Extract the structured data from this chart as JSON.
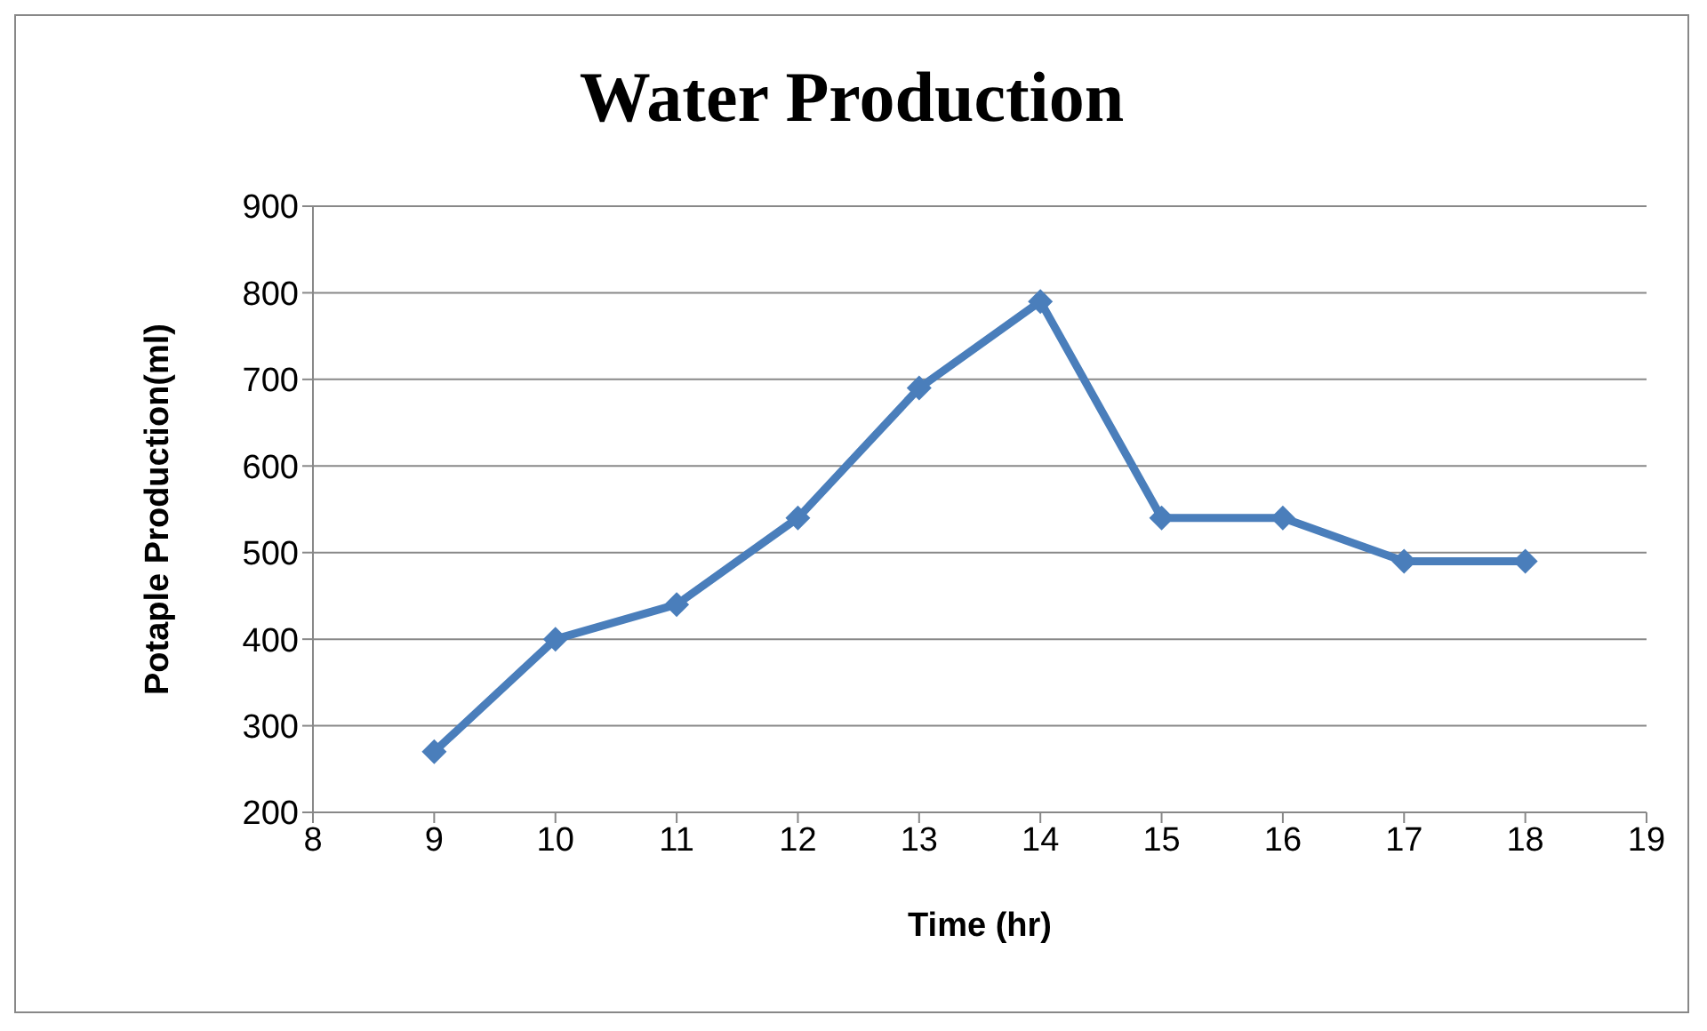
{
  "chart_data": {
    "type": "line",
    "title": "Water Production",
    "xlabel": "Time (hr)",
    "ylabel": "Potaple  Production(ml)",
    "x": [
      9,
      10,
      11,
      12,
      13,
      14,
      15,
      16,
      17,
      18
    ],
    "series": [
      {
        "color": "#4a7ebb",
        "values": [
          270,
          400,
          440,
          540,
          690,
          790,
          540,
          540,
          490,
          490
        ]
      }
    ],
    "xlim": [
      8,
      19
    ],
    "xticks": [
      8,
      9,
      10,
      11,
      12,
      13,
      14,
      15,
      16,
      17,
      18,
      19
    ],
    "ylim": [
      200,
      900
    ],
    "yticks": [
      200,
      300,
      400,
      500,
      600,
      700,
      800,
      900
    ],
    "grid": "y",
    "legend": false,
    "marker": "diamond",
    "line_style": "solid"
  }
}
